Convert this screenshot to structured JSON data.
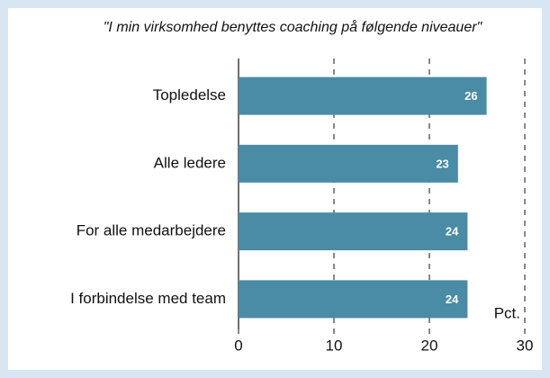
{
  "chart_data": {
    "type": "barh",
    "title": "\"I min virksomhed benyttes coaching på følgende niveauer\"",
    "categories": [
      "Topledelse",
      "Alle ledere",
      "For alle medarbejdere",
      "I forbindelse med team"
    ],
    "values": [
      26,
      23,
      24,
      24
    ],
    "color": "#4a8ba6",
    "xlabel": "Pct.",
    "xlim": [
      0,
      30
    ],
    "xticks": [
      0,
      10,
      20,
      30
    ],
    "grid": true
  }
}
